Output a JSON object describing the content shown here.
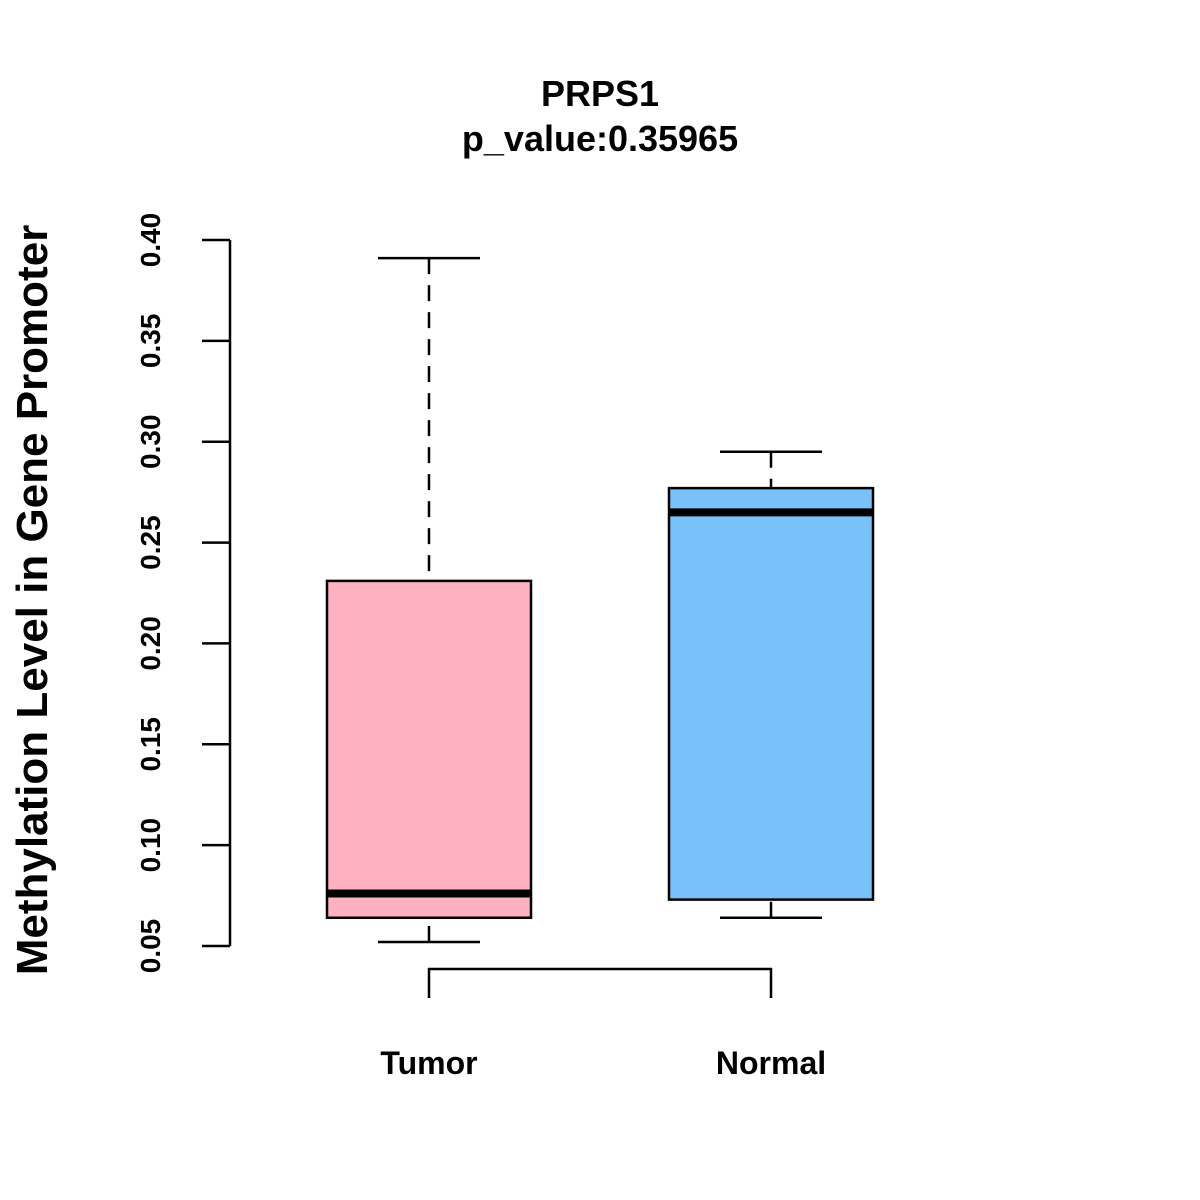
{
  "chart_data": {
    "type": "boxplot",
    "title": "PRPS1",
    "subtitle": "p_value:0.35965",
    "ylabel": "Methylation Level in Gene Promoter",
    "xlabel": "",
    "yticks": [
      "0.05",
      "0.10",
      "0.15",
      "0.20",
      "0.25",
      "0.30",
      "0.35",
      "0.40"
    ],
    "ylim": [
      0.05,
      0.4
    ],
    "grid": false,
    "categories": [
      "Tumor",
      "Normal"
    ],
    "boxes": [
      {
        "category": "Tumor",
        "whisker_low": 0.052,
        "q1": 0.064,
        "median": 0.076,
        "q3": 0.231,
        "whisker_high": 0.391,
        "color": "#FFB0C1"
      },
      {
        "category": "Normal",
        "whisker_low": 0.064,
        "q1": 0.073,
        "median": 0.265,
        "q3": 0.277,
        "whisker_high": 0.295,
        "color": "#78C2F9"
      }
    ],
    "comparison_bracket": [
      "Tumor",
      "Normal"
    ]
  }
}
